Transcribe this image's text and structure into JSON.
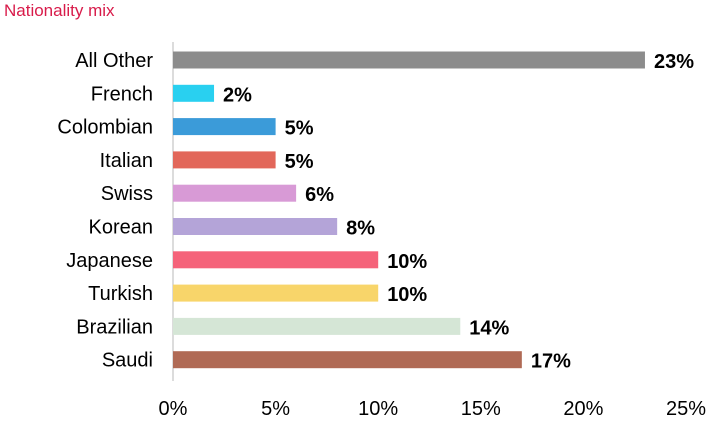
{
  "chart_data": {
    "type": "bar",
    "orientation": "horizontal",
    "title": "Nationality mix",
    "categories": [
      "All Other",
      "French",
      "Colombian",
      "Italian",
      "Swiss",
      "Korean",
      "Japanese",
      "Turkish",
      "Brazilian",
      "Saudi"
    ],
    "values": [
      23,
      2,
      5,
      5,
      6,
      8,
      10,
      10,
      14,
      17
    ],
    "value_labels": [
      "23%",
      "2%",
      "5%",
      "5%",
      "6%",
      "8%",
      "10%",
      "10%",
      "14%",
      "17%"
    ],
    "colors": [
      "#8c8c8c",
      "#29d0f0",
      "#3b9bd9",
      "#e2675a",
      "#d89ad6",
      "#b4a4d8",
      "#f5637a",
      "#f8d56a",
      "#d5e6d6",
      "#b06a55"
    ],
    "xlim": [
      0,
      25
    ],
    "xticks": [
      0,
      5,
      10,
      15,
      20,
      25
    ],
    "xtick_labels": [
      "0%",
      "5%",
      "10%",
      "15%",
      "20%",
      "25%"
    ],
    "grid": false
  }
}
